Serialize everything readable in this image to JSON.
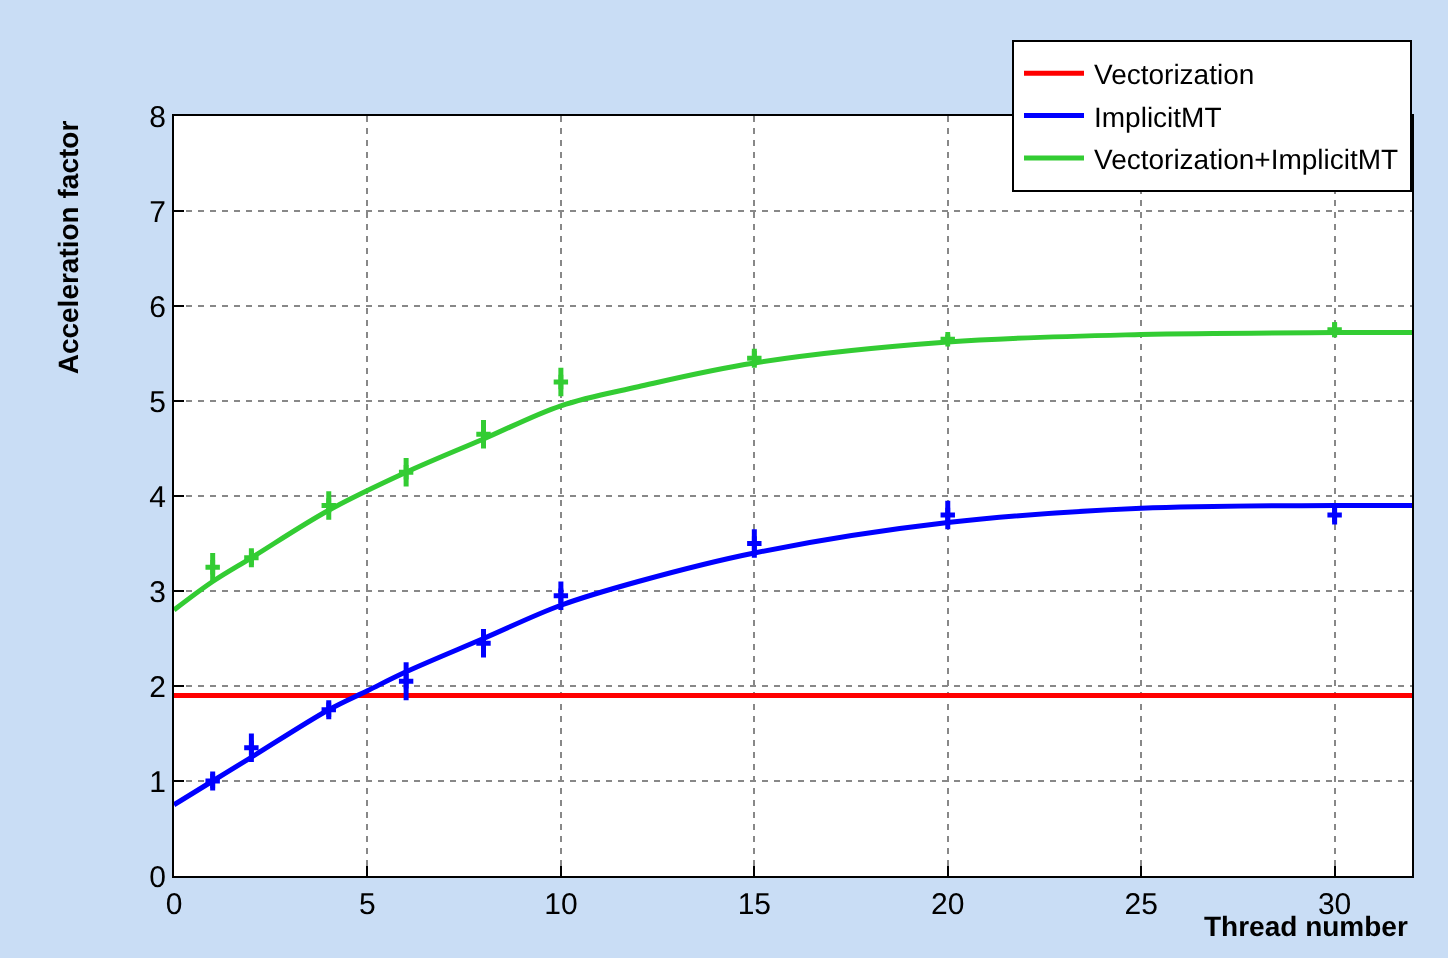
{
  "chart_data": {
    "type": "line",
    "xlabel": "Thread number",
    "ylabel": "Acceleration factor",
    "xlim": [
      0,
      32
    ],
    "ylim": [
      0,
      8
    ],
    "xticks": [
      0,
      5,
      10,
      15,
      20,
      25,
      30
    ],
    "yticks": [
      0,
      1,
      2,
      3,
      4,
      5,
      6,
      7,
      8
    ],
    "grid": true,
    "legend": "top right",
    "line_style": "solid",
    "series": [
      {
        "name": "Vectorization",
        "color": "#ff0000",
        "x": [
          0,
          32
        ],
        "values": [
          1.9,
          1.9
        ]
      },
      {
        "name": "ImplicitMT",
        "color": "#0000ff",
        "x": [
          0,
          1,
          2,
          4,
          5,
          6,
          8,
          10,
          12,
          15,
          20,
          25,
          30,
          32
        ],
        "values": [
          0.75,
          1.0,
          1.25,
          1.75,
          1.95,
          2.15,
          2.5,
          2.85,
          3.1,
          3.4,
          3.72,
          3.87,
          3.9,
          3.9
        ]
      },
      {
        "name": "Vectorization+ImplicitMT",
        "color": "#33cc33",
        "x": [
          0,
          1,
          2,
          4,
          6,
          8,
          10,
          12,
          15,
          20,
          25,
          30,
          32
        ],
        "values": [
          2.8,
          3.1,
          3.35,
          3.85,
          4.25,
          4.6,
          4.95,
          5.15,
          5.4,
          5.62,
          5.7,
          5.72,
          5.72
        ]
      },
      {
        "type": "scatter",
        "marker": "cross",
        "color": "#0000ff",
        "x": [
          1,
          2,
          4,
          6,
          8,
          10,
          15,
          20,
          30
        ],
        "values": [
          1.0,
          1.35,
          1.75,
          2.05,
          2.45,
          2.95,
          3.5,
          3.8,
          3.8
        ],
        "errors": [
          0.1,
          0.15,
          0.1,
          0.2,
          0.15,
          0.15,
          0.15,
          0.15,
          0.1
        ]
      },
      {
        "type": "scatter",
        "marker": "cross",
        "color": "#33cc33",
        "x": [
          1,
          2,
          4,
          6,
          8,
          10,
          15,
          20,
          30
        ],
        "values": [
          3.25,
          3.35,
          3.9,
          4.25,
          4.65,
          5.2,
          5.45,
          5.65,
          5.75
        ],
        "errors": [
          0.15,
          0.1,
          0.15,
          0.15,
          0.15,
          0.15,
          0.1,
          0.05,
          0.08
        ]
      }
    ]
  }
}
